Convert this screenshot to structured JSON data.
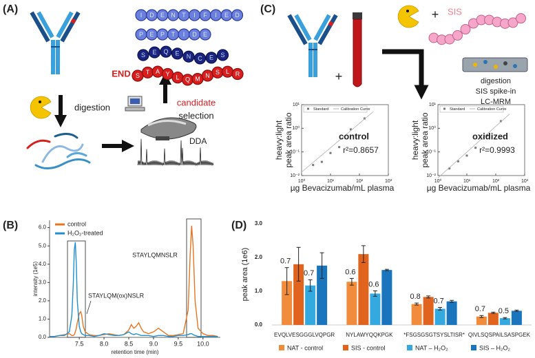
{
  "panel_labels": [
    "(A)",
    "(B)",
    "(C)",
    "(D)"
  ],
  "panel_a": {
    "chains": [
      [
        "I",
        "D",
        "E",
        "N",
        "T",
        "I",
        "F",
        "I",
        "E",
        "D"
      ],
      [
        "P",
        "E",
        "P",
        "T",
        "I",
        "D",
        "E"
      ],
      [
        "S",
        "E",
        "Q",
        "E",
        "N",
        "C",
        "E",
        "S"
      ],
      [
        "S",
        "T",
        "A",
        "Y",
        "L",
        "Q",
        "M",
        "N",
        "S",
        "L",
        "R"
      ]
    ],
    "end": "END",
    "digestion": "digestion",
    "candidate": "candidate",
    "selection": "selection",
    "method": "DDA"
  },
  "panel_c": {
    "plus": "+",
    "sis": "SIS",
    "steps": [
      "digestion",
      "SIS spike-in",
      "LC-MRM"
    ]
  },
  "chart_data": [
    {
      "type": "line",
      "x": [
        6.9,
        7.0,
        7.1,
        7.2,
        7.3,
        7.35,
        7.38,
        7.4,
        7.42,
        7.44,
        7.46,
        7.5,
        7.53,
        7.55,
        7.58,
        7.62,
        7.7,
        7.8,
        7.9,
        8.0,
        8.1,
        8.2,
        8.3,
        8.4,
        8.5,
        8.55,
        8.6,
        8.65,
        8.7,
        8.75,
        8.8,
        8.9,
        9.0,
        9.1,
        9.2,
        9.3,
        9.4,
        9.5,
        9.6,
        9.7,
        9.74,
        9.77,
        9.8,
        9.84,
        9.9,
        10.0,
        10.1,
        10.2,
        10.3
      ],
      "series": [
        {
          "name": "control",
          "color": "#e8731f",
          "values": [
            0.05,
            0.05,
            0.1,
            0.15,
            0.2,
            0.1,
            0.1,
            0.15,
            0.3,
            0.5,
            0.8,
            1.3,
            1.4,
            1.2,
            0.6,
            0.3,
            0.15,
            0.1,
            0.1,
            0.15,
            0.2,
            0.15,
            0.1,
            0.15,
            0.4,
            0.7,
            0.5,
            0.6,
            0.8,
            0.5,
            0.3,
            0.2,
            0.3,
            0.5,
            0.3,
            0.1,
            0.1,
            0.15,
            0.2,
            1.5,
            4.5,
            6.1,
            5.0,
            2.0,
            0.5,
            0.2,
            0.1,
            0.1,
            0.05
          ]
        },
        {
          "name": "H₂O₂-treated",
          "color": "#1f8fd0",
          "values": [
            0.05,
            0.05,
            0.1,
            0.1,
            0.3,
            1.2,
            3.0,
            4.8,
            5.2,
            4.0,
            2.0,
            0.6,
            0.3,
            0.2,
            0.15,
            0.1,
            0.1,
            0.05,
            0.1,
            0.2,
            0.15,
            0.1,
            0.1,
            0.15,
            0.3,
            0.2,
            0.15,
            0.2,
            0.15,
            0.1,
            0.1,
            0.1,
            0.05,
            0.1,
            0.1,
            0.05,
            0.05,
            0.1,
            0.1,
            0.15,
            0.2,
            0.2,
            0.15,
            0.1,
            0.05,
            0.05,
            0.05,
            0.05,
            0.05
          ]
        }
      ],
      "xlim": [
        6.9,
        10.35
      ],
      "ylim": [
        0,
        6.4
      ],
      "xticks": [
        7.5,
        {
          "value": 8,
          "label": "8.0"
        },
        8.5,
        {
          "value": 9,
          "label": "9.0"
        },
        9.5,
        {
          "value": 10,
          "label": "10.0"
        }
      ],
      "yticks": [
        {
          "value": 0,
          "label": "0.0"
        },
        {
          "value": 1,
          "label": "1.0"
        },
        {
          "value": 2,
          "label": "2.0"
        },
        {
          "value": 3,
          "label": "3.0"
        },
        {
          "value": 4,
          "label": "4.0"
        },
        {
          "value": 5,
          "label": "5.0"
        },
        {
          "value": 6,
          "label": "6.0"
        }
      ],
      "xlabel": "retention time (min)",
      "ylabel": "intensity (1e5)",
      "legend": "top-left",
      "annotations": [
        "STAYLQMNSLR",
        "STAYLQM(ox)NSLR"
      ]
    },
    {
      "type": "scatter",
      "series": [
        {
          "name": "Standard",
          "color": "#777777",
          "mode": "markers",
          "x": [
            2.5,
            5,
            10,
            20,
            50,
            150
          ],
          "values": [
            0.028,
            0.038,
            0.09,
            0.16,
            0.9,
            2.6
          ]
        },
        {
          "name": "Calibration Curve",
          "color": "#b0b0b0",
          "mode": "line",
          "x": [
            1,
            300
          ],
          "values": [
            0.014,
            5
          ]
        }
      ],
      "xscale": "log",
      "yscale": "log",
      "xlim": [
        1,
        1000
      ],
      "ylim": [
        0.01,
        10
      ],
      "xticks": [
        {
          "value": 1,
          "label": "10⁰"
        },
        {
          "value": 10,
          "label": "10¹"
        },
        {
          "value": 100,
          "label": "10²"
        },
        {
          "value": 1000,
          "label": "10³"
        }
      ],
      "yticks": [
        {
          "value": 0.01,
          "label": "10⁻²"
        },
        {
          "value": 0.1,
          "label": "10⁻¹"
        },
        {
          "value": 1,
          "label": "10⁰"
        },
        {
          "value": 10,
          "label": "10¹"
        }
      ],
      "xlabel": "µg Bevacizumab/mL plasma",
      "ylabel": [
        "heavy:light",
        "peak area ratio"
      ],
      "legend": "top",
      "annotations": [
        "control",
        "r²=0.8657"
      ]
    },
    {
      "type": "scatter",
      "series": [
        {
          "name": "Standard",
          "color": "#777777",
          "mode": "markers",
          "x": [
            2.5,
            5,
            10,
            20,
            50,
            150
          ],
          "values": [
            0.02,
            0.04,
            0.07,
            0.15,
            0.5,
            2.0
          ]
        },
        {
          "name": "Calibration Curve",
          "color": "#b0b0b0",
          "mode": "line",
          "x": [
            1,
            300
          ],
          "values": [
            0.008,
            4
          ]
        }
      ],
      "xscale": "log",
      "yscale": "log",
      "xlim": [
        1,
        1000
      ],
      "ylim": [
        0.01,
        10
      ],
      "xticks": [
        {
          "value": 1,
          "label": "10⁰"
        },
        {
          "value": 10,
          "label": "10¹"
        },
        {
          "value": 100,
          "label": "10²"
        },
        {
          "value": 1000,
          "label": "10³"
        }
      ],
      "yticks": [
        {
          "value": 0.01,
          "label": "10⁻²"
        },
        {
          "value": 0.1,
          "label": "10⁻¹"
        },
        {
          "value": 1,
          "label": "10⁰"
        },
        {
          "value": 10,
          "label": "10¹"
        }
      ],
      "xlabel": "µg Bevacizumab/mL plasma",
      "ylabel": [
        "heavy:light",
        "peak area ratio"
      ],
      "legend": "top",
      "annotations": [
        "oxidized",
        "r²=0.9993"
      ]
    },
    {
      "type": "bar",
      "categories": [
        "EVQLVESGGGLVQPGR",
        "NYLAWYQQKPGK",
        "*FSGSGSGTSYSLTISR*",
        "QIVLSQSPAILSASPGEK"
      ],
      "series": [
        {
          "name": "NAT - control",
          "color": "#f08c3c",
          "values": [
            1.3,
            1.28,
            0.62,
            0.25
          ],
          "errors": [
            0.4,
            0.1,
            0.03,
            0.03
          ]
        },
        {
          "name": "SIS - control",
          "color": "#e0641e",
          "values": [
            1.8,
            2.1,
            0.83,
            0.36
          ],
          "errors": [
            0.5,
            0.25,
            0.03,
            0.02
          ]
        },
        {
          "name": "NAT – H₂O₂",
          "color": "#33a9e0",
          "values": [
            1.17,
            0.93,
            0.48,
            0.2
          ],
          "errors": [
            0.17,
            0.08,
            0.04,
            0.02
          ]
        },
        {
          "name": "SIS – H₂O₂",
          "color": "#1a75bc",
          "values": [
            1.76,
            1.63,
            0.7,
            0.42
          ],
          "errors": [
            0.38,
            0.02,
            0.03,
            0.02
          ]
        }
      ],
      "ylim": [
        0,
        3
      ],
      "yticks": [
        {
          "value": 0,
          "label": "0.0"
        },
        {
          "value": 1,
          "label": "1.0"
        },
        {
          "value": 2,
          "label": "2.0"
        },
        {
          "value": 3,
          "label": "3.0"
        }
      ],
      "ylabel": "peak area (1e6)",
      "legend": "bottom",
      "control_ratios": [
        0.7,
        0.6,
        0.8,
        0.7
      ],
      "h2o2_ratios": [
        0.7,
        0.6,
        0.7,
        0.5
      ]
    }
  ]
}
